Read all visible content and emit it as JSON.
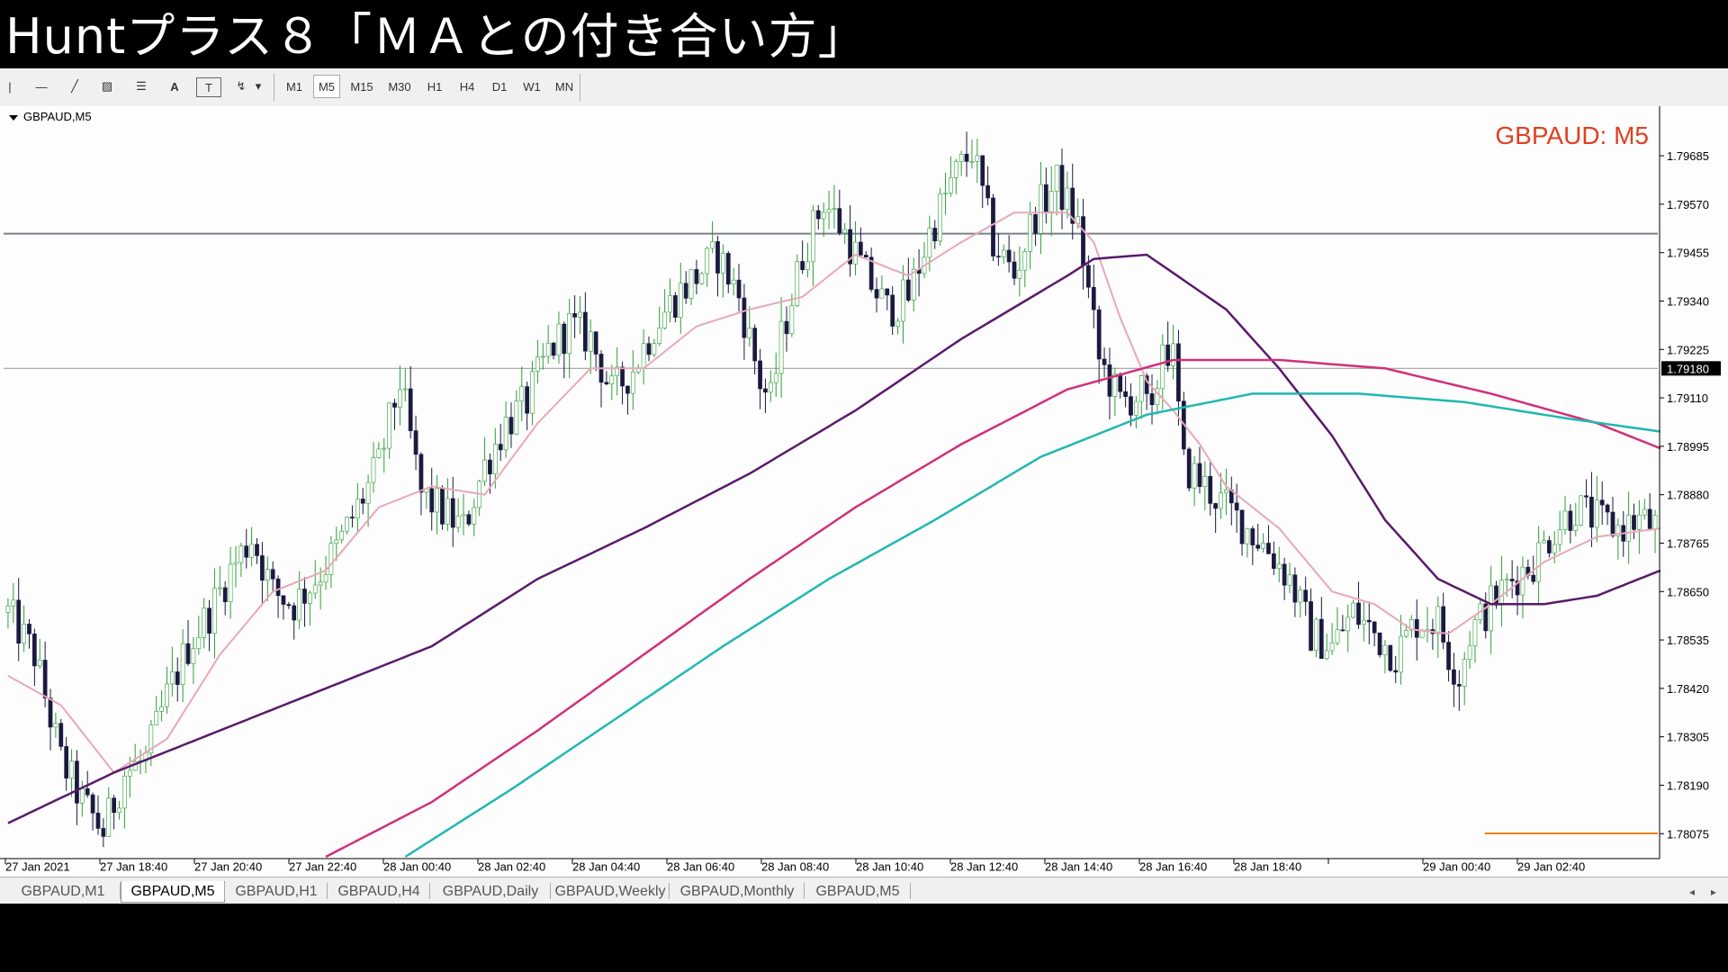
{
  "video_title": "Huntプラス８「ＭＡとの付き合い方」",
  "toolbar": {
    "tools": [
      {
        "name": "vertical-line-icon",
        "glyph": "|"
      },
      {
        "name": "horizontal-line-icon",
        "glyph": "—"
      },
      {
        "name": "trendline-icon",
        "glyph": "╱"
      },
      {
        "name": "channel-icon",
        "glyph": "▨"
      },
      {
        "name": "fibonacci-icon",
        "glyph": "☰"
      },
      {
        "name": "text-icon",
        "glyph": "A"
      },
      {
        "name": "text-label-icon",
        "glyph": "T"
      },
      {
        "name": "arrows-icon",
        "glyph": "↯"
      },
      {
        "name": "dropdown-arrow-icon",
        "glyph": "▾"
      }
    ],
    "timeframes": [
      "M1",
      "M5",
      "M15",
      "M30",
      "H1",
      "H4",
      "D1",
      "W1",
      "MN"
    ],
    "active_timeframe": "M5"
  },
  "chart": {
    "window_label": "GBPAUD,M5",
    "watermark": "GBPAUD: M5",
    "current_price_label": "1.79180",
    "colors": {
      "background": "#fdfdfd",
      "bull_candle": "#2e9e3a",
      "bear_candle": "#1a1a40",
      "ma_fast": "#e8a8b8",
      "ma_mid": "#5a1a6a",
      "ma_slow": "#d0307a",
      "ma_slowest": "#20b8b0",
      "watermark": "#e04020",
      "price_tag_bg": "#000000",
      "level_line": "#f08020"
    }
  },
  "chart_data": {
    "type": "candlestick",
    "symbol": "GBPAUD",
    "timeframe": "M5",
    "ylim": [
      1.7802,
      1.7976
    ],
    "y_ticks": [
      "1.79685",
      "1.79570",
      "1.79455",
      "1.79340",
      "1.79225",
      "1.79110",
      "1.78995",
      "1.78880",
      "1.78765",
      "1.78650",
      "1.78535",
      "1.78420",
      "1.78305",
      "1.78190",
      "1.78075"
    ],
    "x_ticks": [
      "27 Jan 2021",
      "27 Jan 18:40",
      "27 Jan 20:40",
      "27 Jan 22:40",
      "28 Jan 00:40",
      "28 Jan 02:40",
      "28 Jan 04:40",
      "28 Jan 06:40",
      "28 Jan 08:40",
      "28 Jan 10:40",
      "28 Jan 12:40",
      "28 Jan 14:40",
      "28 Jan 16:40",
      "28 Jan 18:40",
      "",
      "29 Jan 00:40",
      "29 Jan 02:40"
    ],
    "close_path": [
      [
        0,
        1.786
      ],
      [
        5,
        1.785
      ],
      [
        10,
        1.7825
      ],
      [
        14,
        1.7815
      ],
      [
        18,
        1.7808
      ],
      [
        22,
        1.7822
      ],
      [
        26,
        1.7825
      ],
      [
        30,
        1.784
      ],
      [
        34,
        1.7852
      ],
      [
        38,
        1.786
      ],
      [
        42,
        1.787
      ],
      [
        46,
        1.7878
      ],
      [
        50,
        1.7865
      ],
      [
        54,
        1.7862
      ],
      [
        58,
        1.7868
      ],
      [
        62,
        1.7875
      ],
      [
        66,
        1.7885
      ],
      [
        70,
        1.7895
      ],
      [
        74,
        1.7915
      ],
      [
        78,
        1.7888
      ],
      [
        82,
        1.7884
      ],
      [
        86,
        1.788
      ],
      [
        90,
        1.7895
      ],
      [
        94,
        1.7905
      ],
      [
        98,
        1.791
      ],
      [
        102,
        1.7922
      ],
      [
        106,
        1.7928
      ],
      [
        110,
        1.7925
      ],
      [
        114,
        1.7912
      ],
      [
        118,
        1.7918
      ],
      [
        122,
        1.7928
      ],
      [
        126,
        1.7935
      ],
      [
        130,
        1.794
      ],
      [
        134,
        1.7945
      ],
      [
        138,
        1.7935
      ],
      [
        142,
        1.7915
      ],
      [
        144,
        1.791
      ],
      [
        146,
        1.7925
      ],
      [
        150,
        1.7945
      ],
      [
        154,
        1.7958
      ],
      [
        158,
        1.795
      ],
      [
        162,
        1.794
      ],
      [
        166,
        1.7932
      ],
      [
        170,
        1.7935
      ],
      [
        174,
        1.795
      ],
      [
        178,
        1.7962
      ],
      [
        182,
        1.797
      ],
      [
        186,
        1.7948
      ],
      [
        190,
        1.794
      ],
      [
        194,
        1.7955
      ],
      [
        198,
        1.7962
      ],
      [
        202,
        1.7952
      ],
      [
        206,
        1.792
      ],
      [
        210,
        1.791
      ],
      [
        214,
        1.7912
      ],
      [
        216,
        1.7905
      ],
      [
        218,
        1.7925
      ],
      [
        220,
        1.792
      ],
      [
        222,
        1.7895
      ],
      [
        226,
        1.789
      ],
      [
        230,
        1.7885
      ],
      [
        234,
        1.788
      ],
      [
        238,
        1.7875
      ],
      [
        242,
        1.7868
      ],
      [
        246,
        1.7855
      ],
      [
        250,
        1.7852
      ],
      [
        254,
        1.786
      ],
      [
        258,
        1.7855
      ],
      [
        262,
        1.785
      ],
      [
        266,
        1.7858
      ],
      [
        270,
        1.7858
      ],
      [
        272,
        1.785
      ],
      [
        274,
        1.7845
      ],
      [
        276,
        1.7855
      ],
      [
        280,
        1.7862
      ],
      [
        284,
        1.7868
      ],
      [
        288,
        1.7872
      ],
      [
        292,
        1.788
      ],
      [
        296,
        1.7885
      ],
      [
        300,
        1.7882
      ],
      [
        304,
        1.788
      ],
      [
        308,
        1.7882
      ],
      [
        312,
        1.788
      ]
    ],
    "ma_fast_path": [
      [
        0,
        1.7845
      ],
      [
        10,
        1.7838
      ],
      [
        20,
        1.7822
      ],
      [
        30,
        1.783
      ],
      [
        40,
        1.785
      ],
      [
        50,
        1.7865
      ],
      [
        60,
        1.787
      ],
      [
        70,
        1.7885
      ],
      [
        80,
        1.789
      ],
      [
        90,
        1.7888
      ],
      [
        100,
        1.7905
      ],
      [
        110,
        1.7918
      ],
      [
        120,
        1.7918
      ],
      [
        130,
        1.7928
      ],
      [
        140,
        1.7932
      ],
      [
        150,
        1.7935
      ],
      [
        160,
        1.7945
      ],
      [
        170,
        1.794
      ],
      [
        180,
        1.7948
      ],
      [
        190,
        1.7955
      ],
      [
        200,
        1.7955
      ],
      [
        205,
        1.7948
      ],
      [
        210,
        1.793
      ],
      [
        215,
        1.7915
      ],
      [
        220,
        1.7908
      ],
      [
        225,
        1.79
      ],
      [
        230,
        1.789
      ],
      [
        240,
        1.788
      ],
      [
        250,
        1.7865
      ],
      [
        258,
        1.7862
      ],
      [
        265,
        1.7856
      ],
      [
        272,
        1.7855
      ],
      [
        280,
        1.7862
      ],
      [
        290,
        1.7872
      ],
      [
        300,
        1.7878
      ],
      [
        312,
        1.788
      ]
    ],
    "ma_mid_path": [
      [
        0,
        1.781
      ],
      [
        20,
        1.7822
      ],
      [
        40,
        1.7832
      ],
      [
        60,
        1.7842
      ],
      [
        80,
        1.7852
      ],
      [
        100,
        1.7868
      ],
      [
        120,
        1.788
      ],
      [
        140,
        1.7893
      ],
      [
        160,
        1.7908
      ],
      [
        180,
        1.7925
      ],
      [
        200,
        1.794
      ],
      [
        205,
        1.7944
      ],
      [
        215,
        1.7945
      ],
      [
        230,
        1.7932
      ],
      [
        240,
        1.7918
      ],
      [
        250,
        1.7902
      ],
      [
        260,
        1.7882
      ],
      [
        270,
        1.7868
      ],
      [
        280,
        1.7862
      ],
      [
        290,
        1.7862
      ],
      [
        300,
        1.7864
      ],
      [
        312,
        1.787
      ]
    ],
    "ma_slow_path": [
      [
        60,
        1.7802
      ],
      [
        80,
        1.7815
      ],
      [
        100,
        1.7832
      ],
      [
        120,
        1.785
      ],
      [
        140,
        1.7868
      ],
      [
        160,
        1.7885
      ],
      [
        180,
        1.79
      ],
      [
        200,
        1.7913
      ],
      [
        220,
        1.792
      ],
      [
        240,
        1.792
      ],
      [
        260,
        1.7918
      ],
      [
        280,
        1.7912
      ],
      [
        300,
        1.7905
      ],
      [
        312,
        1.7899
      ]
    ],
    "ma_slowest_path": [
      [
        75,
        1.7802
      ],
      [
        95,
        1.7818
      ],
      [
        115,
        1.7835
      ],
      [
        135,
        1.7852
      ],
      [
        155,
        1.7868
      ],
      [
        175,
        1.7882
      ],
      [
        195,
        1.7897
      ],
      [
        215,
        1.7907
      ],
      [
        235,
        1.7912
      ],
      [
        255,
        1.7912
      ],
      [
        275,
        1.791
      ],
      [
        295,
        1.7906
      ],
      [
        312,
        1.7903
      ]
    ],
    "bar_count": 312,
    "horizontal_lines": [
      1.795,
      1.7918
    ]
  }
}
